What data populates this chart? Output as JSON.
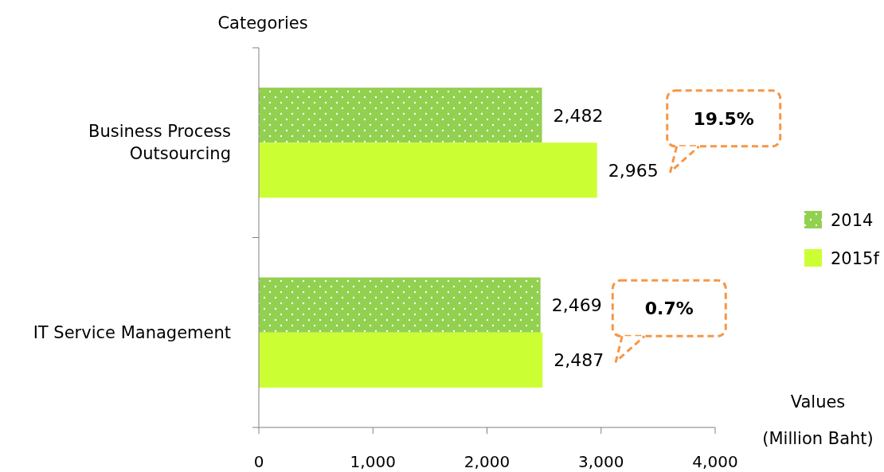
{
  "chart_data": {
    "type": "bar",
    "orientation": "horizontal",
    "ylabel": "Categories",
    "xlabel": "Values (Million Baht)",
    "categories": [
      "Business Process Outsourcing",
      "IT Service Management"
    ],
    "series": [
      {
        "name": "2014",
        "color": "#92d050",
        "values": [
          2482,
          2469
        ],
        "value_labels": [
          "2,482",
          "2,469"
        ]
      },
      {
        "name": "2015f",
        "color": "#ccff33",
        "values": [
          2965,
          2487
        ],
        "value_labels": [
          "2,965",
          "2,487"
        ]
      }
    ],
    "xlim": [
      0,
      4000
    ],
    "xticks": [
      0,
      {
        "value": 1000,
        "label": "1,000"
      },
      {
        "value": 2000,
        "label": "2,000"
      },
      {
        "value": 3000,
        "label": "3,000"
      },
      {
        "value": 4000,
        "label": "4,000"
      }
    ],
    "legend": "right",
    "grid": false,
    "annotations": [
      "19.5%",
      "0.7%"
    ]
  }
}
